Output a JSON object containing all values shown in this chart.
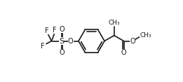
{
  "bg_color": "#ffffff",
  "line_color": "#1a1a1a",
  "line_width": 1.2,
  "font_size": 7.0,
  "fig_width": 2.61,
  "fig_height": 1.17,
  "dpi": 100,
  "xlim": [
    0,
    11.0
  ],
  "ylim": [
    0.5,
    5.0
  ]
}
